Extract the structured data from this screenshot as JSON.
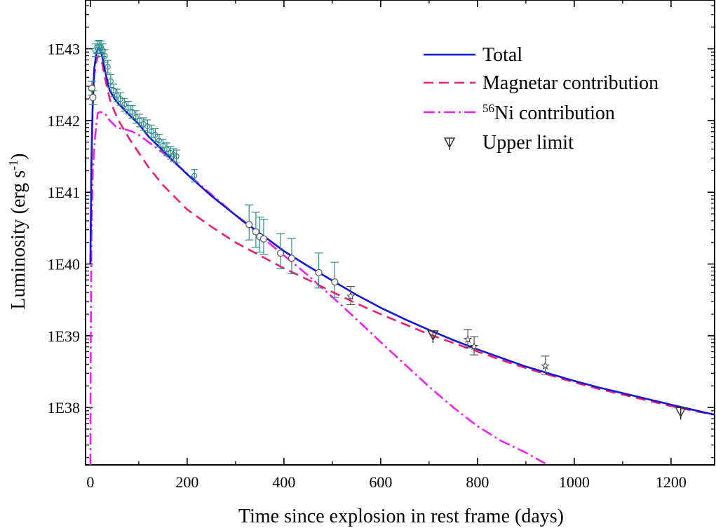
{
  "chart_data": {
    "type": "line",
    "title": "",
    "xlabel": "Time since explosion in rest frame (days)",
    "ylabel_main": "Luminosity (erg s",
    "ylabel_sup": "-1",
    "ylabel_close": ")",
    "xlim": [
      -10,
      1290
    ],
    "ylim_log10": [
      37.2,
      43.68
    ],
    "yscale": "log",
    "grid": false,
    "legend_position": "top-right",
    "x_ticks": [
      0,
      200,
      400,
      600,
      800,
      1000,
      1200
    ],
    "x_tick_labels": [
      "0",
      "200",
      "400",
      "600",
      "800",
      "1000",
      "1200"
    ],
    "y_ticks_log10": [
      38,
      39,
      40,
      41,
      42,
      43
    ],
    "y_tick_labels": [
      "1E38",
      "1E39",
      "1E40",
      "1E41",
      "1E42",
      "1E43"
    ],
    "legend": [
      {
        "key": "total",
        "label": "Total"
      },
      {
        "key": "magnetar",
        "label": "Magnetar contribution"
      },
      {
        "key": "ni",
        "sup": "56",
        "label": "Ni contribution"
      },
      {
        "key": "upper",
        "label": "Upper limit"
      }
    ],
    "series": [
      {
        "name": "Total",
        "color": "#1515d6",
        "style": "solid",
        "x": [
          0,
          2,
          5,
          8,
          12,
          16,
          18,
          20,
          22,
          25,
          30,
          35,
          40,
          50,
          60,
          80,
          100,
          120,
          150,
          200,
          250,
          300,
          350,
          400,
          450,
          500,
          550,
          600,
          650,
          700,
          750,
          800,
          850,
          900,
          950,
          1000,
          1050,
          1100,
          1150,
          1200,
          1250,
          1290
        ],
        "y_log10": [
          40.0,
          41.4,
          42.3,
          42.72,
          42.93,
          43.0,
          43.02,
          43.0,
          42.96,
          42.87,
          42.7,
          42.55,
          42.42,
          42.3,
          42.22,
          42.08,
          41.95,
          41.78,
          41.58,
          41.25,
          40.95,
          40.68,
          40.43,
          40.18,
          39.97,
          39.77,
          39.57,
          39.39,
          39.23,
          39.08,
          38.94,
          38.81,
          38.69,
          38.57,
          38.47,
          38.37,
          38.28,
          38.2,
          38.12,
          38.04,
          37.96,
          37.9
        ]
      },
      {
        "name": "Magnetar contribution",
        "color": "#ee1e73",
        "style": "dash",
        "x": [
          0,
          2,
          5,
          8,
          12,
          16,
          20,
          25,
          30,
          35,
          40,
          50,
          60,
          80,
          100,
          120,
          150,
          200,
          250,
          300,
          350,
          400,
          450,
          500,
          550,
          600,
          650,
          700,
          750,
          800,
          850,
          900,
          950,
          1000,
          1050,
          1100,
          1150,
          1200,
          1250,
          1290
        ],
        "y_log10": [
          40.0,
          41.3,
          42.2,
          42.62,
          42.82,
          42.9,
          42.88,
          42.78,
          42.6,
          42.44,
          42.3,
          42.12,
          41.98,
          41.75,
          41.55,
          41.35,
          41.1,
          40.76,
          40.52,
          40.3,
          40.12,
          39.94,
          39.78,
          39.61,
          39.45,
          39.3,
          39.16,
          39.02,
          38.9,
          38.78,
          38.66,
          38.55,
          38.45,
          38.35,
          38.26,
          38.18,
          38.1,
          38.02,
          37.95,
          37.9
        ]
      },
      {
        "name": "56Ni contribution",
        "color": "#ee22ee",
        "style": "dashdot",
        "x": [
          0,
          0.5,
          2,
          5,
          10,
          15,
          20,
          30,
          40,
          55,
          70,
          85,
          100,
          150,
          200,
          250,
          300,
          350,
          400,
          450,
          500,
          550,
          600,
          650,
          700,
          750,
          800,
          850,
          900,
          940
        ],
        "y_log10": [
          37.2,
          38.5,
          40.3,
          41.3,
          41.8,
          42.1,
          42.12,
          42.1,
          42.0,
          41.9,
          41.88,
          41.85,
          41.8,
          41.55,
          41.26,
          40.97,
          40.68,
          40.4,
          40.12,
          39.84,
          39.54,
          39.23,
          38.91,
          38.6,
          38.29,
          38.0,
          37.74,
          37.53,
          37.37,
          37.22
        ]
      }
    ],
    "observations": {
      "x": [
        10,
        14,
        18,
        22,
        26,
        30,
        36,
        42,
        48,
        55,
        62,
        70,
        78,
        86,
        94,
        102,
        110,
        118,
        126,
        134,
        142,
        150,
        158,
        166,
        172,
        178,
        215
      ],
      "y_log10": [
        42.98,
        43.02,
        43.03,
        43.02,
        42.98,
        42.9,
        42.75,
        42.55,
        42.42,
        42.35,
        42.3,
        42.22,
        42.18,
        42.12,
        42.05,
        42.0,
        41.95,
        41.92,
        41.85,
        41.8,
        41.72,
        41.65,
        41.6,
        41.55,
        41.52,
        41.5,
        41.23
      ]
    },
    "detections_circle": {
      "x": [
        3,
        5,
        328,
        342,
        350,
        358,
        393,
        416,
        472,
        505
      ],
      "y_log10": [
        42.45,
        42.32,
        40.55,
        40.45,
        40.38,
        40.35,
        40.15,
        40.08,
        39.88,
        39.75
      ]
    },
    "detections_star": {
      "x": [
        538,
        780,
        793,
        940
      ],
      "y_log10": [
        39.55,
        38.95,
        38.85,
        38.58
      ]
    },
    "upper_limits": {
      "x": [
        708,
        1220
      ],
      "y_log10": [
        39.0,
        37.93
      ]
    }
  }
}
